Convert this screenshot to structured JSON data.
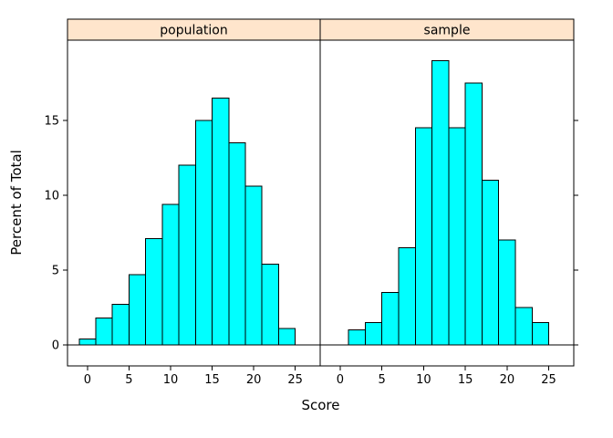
{
  "chart_data": {
    "type": "bar",
    "subtype": "histogram-lattice",
    "title": "",
    "xlabel": "Score",
    "ylabel": "Percent of Total",
    "x_ticks": [
      0,
      5,
      10,
      15,
      20,
      25
    ],
    "y_ticks": [
      0,
      5,
      10,
      15
    ],
    "xlim": [
      -2.4,
      28.0
    ],
    "ylim": [
      0,
      20.5
    ],
    "grid": false,
    "bar_color": "#00FFFF",
    "bar_stroke": "#000000",
    "strip_color": "#FFE5CC",
    "panels": [
      {
        "label": "population",
        "bin_start": -1,
        "bin_width": 2,
        "values": [
          0.4,
          1.8,
          2.7,
          4.7,
          7.1,
          9.4,
          12.0,
          15.0,
          16.5,
          13.5,
          10.6,
          5.4,
          1.1
        ]
      },
      {
        "label": "sample",
        "bin_start": 1,
        "bin_width": 2,
        "values": [
          1.0,
          1.5,
          3.5,
          6.5,
          14.5,
          19.0,
          14.5,
          17.5,
          11.0,
          7.0,
          2.5,
          1.5
        ]
      }
    ]
  }
}
